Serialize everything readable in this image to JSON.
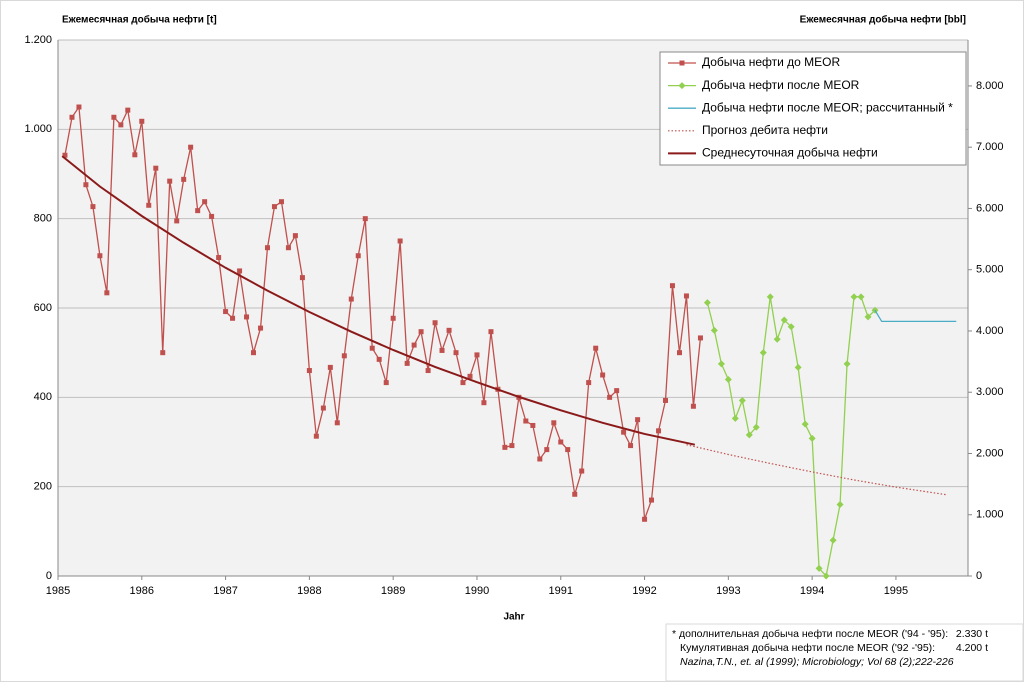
{
  "chart_data": {
    "type": "line",
    "title": "Ежемесячная добыча нефти [t]",
    "y2_title": "Ежемесячная добыча нефти [bbl]",
    "xlabel": "Jahr",
    "xlim": [
      1985,
      1995.86
    ],
    "xticks": [
      1985,
      1986,
      1987,
      1988,
      1989,
      1990,
      1991,
      1992,
      1993,
      1994,
      1995
    ],
    "ylim": [
      0,
      1200
    ],
    "yticks": [
      0,
      200,
      400,
      600,
      800,
      {
        "value": 1000,
        "label": "1.000"
      },
      {
        "value": 1200,
        "label": "1.200"
      }
    ],
    "y2lim": [
      0,
      8750
    ],
    "y2ticks": [
      0,
      {
        "value": 1000,
        "label": "1.000"
      },
      {
        "value": 2000,
        "label": "2.000"
      },
      {
        "value": 3000,
        "label": "3.000"
      },
      {
        "value": 4000,
        "label": "4.000"
      },
      {
        "value": 5000,
        "label": "5.000"
      },
      {
        "value": 6000,
        "label": "6.000"
      },
      {
        "value": 7000,
        "label": "7.000"
      },
      {
        "value": 8000,
        "label": "8.000"
      }
    ],
    "grid": true,
    "legend": "upper right",
    "series": [
      {
        "name": "Добыча нефти до MEOR",
        "color": "#c0504d",
        "marker": "square",
        "style": "solid",
        "x": [
          1985.083,
          1985.167,
          1985.25,
          1985.333,
          1985.417,
          1985.5,
          1985.583,
          1985.667,
          1985.75,
          1985.833,
          1985.917,
          1986.0,
          1986.083,
          1986.167,
          1986.25,
          1986.333,
          1986.417,
          1986.5,
          1986.583,
          1986.667,
          1986.75,
          1986.833,
          1986.917,
          1987.0,
          1987.083,
          1987.167,
          1987.25,
          1987.333,
          1987.417,
          1987.5,
          1987.583,
          1987.667,
          1987.75,
          1987.833,
          1987.917,
          1988.0,
          1988.083,
          1988.167,
          1988.25,
          1988.333,
          1988.417,
          1988.5,
          1988.583,
          1988.667,
          1988.75,
          1988.833,
          1988.917,
          1989.0,
          1989.083,
          1989.167,
          1989.25,
          1989.333,
          1989.417,
          1989.5,
          1989.583,
          1989.667,
          1989.75,
          1989.833,
          1989.917,
          1990.0,
          1990.083,
          1990.167,
          1990.25,
          1990.333,
          1990.417,
          1990.5,
          1990.583,
          1990.667,
          1990.75,
          1990.833,
          1990.917,
          1991.0,
          1991.083,
          1991.167,
          1991.25,
          1991.333,
          1991.417,
          1991.5,
          1991.583,
          1991.667,
          1991.75,
          1991.833,
          1991.917,
          1992.0,
          1992.083,
          1992.167,
          1992.25,
          1992.333,
          1992.417,
          1992.5,
          1992.583,
          1992.667
        ],
        "values": [
          942,
          1027,
          1050,
          876,
          827,
          717,
          634,
          1027,
          1010,
          1043,
          943,
          1018,
          830,
          913,
          500,
          884,
          795,
          888,
          960,
          818,
          838,
          805,
          713,
          592,
          577,
          683,
          580,
          500,
          555,
          735,
          827,
          838,
          735,
          762,
          668,
          460,
          313,
          376,
          467,
          343,
          493,
          620,
          717,
          800,
          510,
          485,
          433,
          577,
          750,
          476,
          517,
          547,
          460,
          567,
          505,
          550,
          500,
          433,
          447,
          495,
          388,
          547,
          418,
          288,
          292,
          400,
          347,
          337,
          262,
          283,
          343,
          300,
          283,
          183,
          235,
          433,
          510,
          450,
          400,
          415,
          322,
          292,
          350,
          127,
          170,
          325,
          393,
          650,
          500,
          627,
          380,
          533
        ]
      },
      {
        "name": "Добыча нефти после MEOR",
        "color": "#92d050",
        "marker": "diamond",
        "style": "solid",
        "x": [
          1992.75,
          1992.833,
          1992.917,
          1993.0,
          1993.083,
          1993.167,
          1993.25,
          1993.333,
          1993.417,
          1993.5,
          1993.583,
          1993.667,
          1993.75,
          1993.833,
          1993.917,
          1994.0,
          1994.083,
          1994.167,
          1994.25,
          1994.333,
          1994.417,
          1994.5,
          1994.583,
          1994.667,
          1994.75
        ],
        "values": [
          612,
          550,
          475,
          440,
          353,
          393,
          316,
          333,
          500,
          625,
          530,
          573,
          558,
          467,
          340,
          308,
          17,
          0,
          80,
          160,
          475,
          625,
          625,
          580,
          595
        ]
      },
      {
        "name": "Добыча нефти после MEOR;  рассчитанный *",
        "color": "#4bacc6",
        "marker": "none",
        "style": "solid",
        "x": [
          1994.75,
          1994.83,
          1995.72
        ],
        "values": [
          595,
          570,
          570
        ]
      },
      {
        "name": "Прогноз дебита нефти",
        "color": "#c0504d",
        "marker": "none",
        "style": "dotted",
        "x": [
          1992.5,
          1993,
          1993.5,
          1994,
          1994.5,
          1995,
          1995.6
        ],
        "values": [
          294,
          272,
          252,
          233,
          215,
          199,
          182
        ]
      },
      {
        "name": "Среднесуточная добыча нефти",
        "color": "#8b1a1a",
        "marker": "none",
        "style": "thick",
        "x": [
          1985.05,
          1985.5,
          1986,
          1986.5,
          1987,
          1987.5,
          1988,
          1988.5,
          1989,
          1989.5,
          1990,
          1990.5,
          1991,
          1991.5,
          1992,
          1992.6
        ],
        "values": [
          940,
          872,
          806,
          746,
          690,
          639,
          591,
          547,
          506,
          468,
          434,
          401,
          371,
          343,
          318,
          294
        ]
      }
    ],
    "footnote": [
      [
        "* дополнительная добыча нефти после MEOR ('94 - '95):",
        "2.330 t"
      ],
      [
        "Кумулятивная добыча нефти после MEOR ('92 -'95):",
        "4.200 t"
      ],
      [
        "Nazina,T.N., et. al (1999); Microbiology; Vol 68 (2);222-226"
      ]
    ]
  }
}
